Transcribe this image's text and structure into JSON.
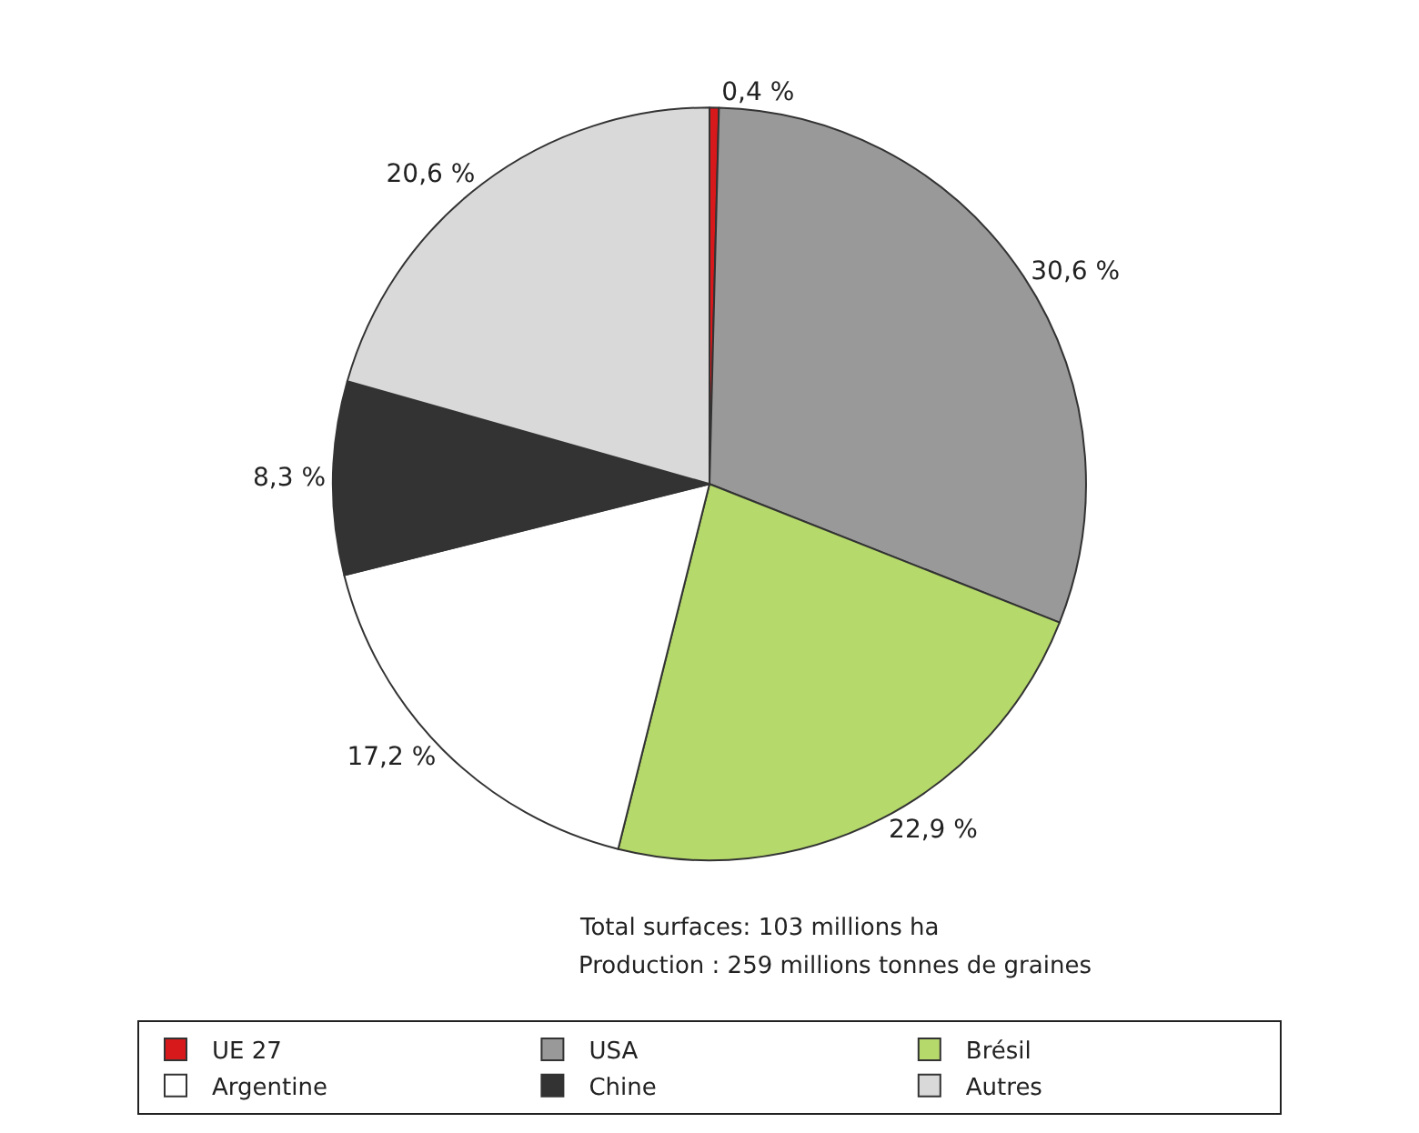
{
  "chart_data": {
    "type": "pie",
    "categories": [
      "UE 27",
      "USA",
      "Brésil",
      "Argentine",
      "Chine",
      "Autres"
    ],
    "values": [
      0.4,
      30.6,
      22.9,
      17.2,
      8.3,
      20.6
    ],
    "value_labels": [
      "0,4 %",
      "30,6 %",
      "22,9 %",
      "17,2 %",
      "8,3 %",
      "20,6 %"
    ],
    "colors": [
      "#d7191c",
      "#999999",
      "#b5d96a",
      "#ffffff",
      "#333333",
      "#d9d9d9"
    ],
    "annotations": [
      "Total surfaces: 103 millions ha",
      "Production : 259 millions tonnes de graines"
    ],
    "legend": "bottom"
  }
}
